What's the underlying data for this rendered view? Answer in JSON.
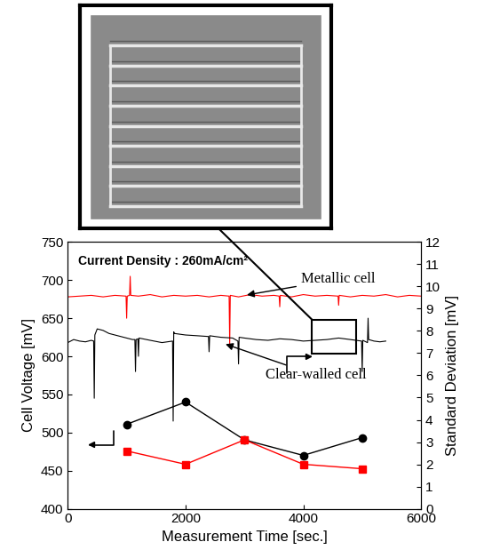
{
  "chart_data": {
    "type": "line",
    "annotations": [
      "Current Density : 260mA/cm²"
    ],
    "x_label": "Measurement Time [sec.]",
    "y_label": "Cell Voltage [mV]",
    "y2_label": "Standard Deviation [mV]",
    "xlim": [
      0,
      6000
    ],
    "xticks": [
      0,
      2000,
      4000,
      6000
    ],
    "ylim": [
      400,
      750
    ],
    "yticks": [
      400,
      450,
      500,
      550,
      600,
      650,
      700,
      750
    ],
    "y2lim": [
      0,
      12
    ],
    "y2ticks": [
      0,
      1,
      2,
      3,
      4,
      5,
      6,
      7,
      8,
      9,
      10,
      11,
      12
    ],
    "inset_region": {
      "x": [
        4150,
        4900
      ],
      "y": [
        603,
        648
      ]
    },
    "series": [
      {
        "name": "Metallic cell",
        "color": "#ff0000",
        "marker": "none",
        "line_style": "solid",
        "x": [
          0,
          200,
          400,
          600,
          800,
          990,
          1000,
          1010,
          1050,
          1060,
          1070,
          1200,
          1400,
          1600,
          1800,
          2000,
          2200,
          2400,
          2600,
          2740,
          2750,
          2760,
          2900,
          3100,
          3300,
          3500,
          3590,
          3600,
          3610,
          3800,
          4000,
          4200,
          4400,
          4590,
          4600,
          4610,
          4800,
          5000,
          5200,
          5400,
          5600,
          5800,
          6000
        ],
        "values": [
          678,
          679,
          680,
          678,
          680,
          679,
          650,
          679,
          680,
          705,
          680,
          679,
          681,
          678,
          680,
          679,
          680,
          678,
          680,
          679,
          615,
          680,
          678,
          681,
          679,
          680,
          679,
          665,
          680,
          678,
          681,
          679,
          680,
          679,
          667,
          680,
          678,
          680,
          679,
          681,
          678,
          680,
          679
        ]
      },
      {
        "name": "Clear-walled cell",
        "color": "#000000",
        "marker": "none",
        "line_style": "solid",
        "x": [
          0,
          100,
          200,
          300,
          400,
          440,
          450,
          460,
          500,
          600,
          700,
          800,
          900,
          1000,
          1100,
          1140,
          1150,
          1160,
          1190,
          1200,
          1210,
          1400,
          1600,
          1780,
          1790,
          1800,
          1810,
          2000,
          2200,
          2390,
          2400,
          2410,
          2600,
          2800,
          2890,
          2900,
          2910,
          3000,
          3200,
          3400,
          3600,
          3800,
          4000,
          4200,
          4400,
          4600,
          4800,
          4990,
          5000,
          5010,
          5090,
          5100,
          5110,
          5200,
          5300,
          5400
        ],
        "values": [
          618,
          622,
          620,
          619,
          621,
          620,
          545,
          628,
          636,
          634,
          630,
          628,
          626,
          624,
          622,
          622,
          580,
          622,
          623,
          600,
          624,
          621,
          618,
          620,
          515,
          632,
          630,
          628,
          627,
          626,
          606,
          627,
          625,
          624,
          620,
          590,
          625,
          624,
          622,
          621,
          623,
          622,
          620,
          621,
          622,
          624,
          622,
          620,
          580,
          621,
          618,
          650,
          622,
          620,
          619,
          620
        ]
      },
      {
        "color": "#000000",
        "marker": "o",
        "line_style": "solid",
        "axis": "y2",
        "x": [
          1000,
          2000,
          3000,
          4000,
          5000
        ],
        "values": [
          3.8,
          4.8,
          3.1,
          2.4,
          3.2
        ]
      },
      {
        "color": "#ff0000",
        "marker": "s",
        "line_style": "solid",
        "axis": "y2",
        "x": [
          1000,
          2000,
          3000,
          4000,
          5000
        ],
        "values": [
          2.6,
          2.0,
          3.1,
          2.0,
          1.8
        ]
      }
    ]
  }
}
